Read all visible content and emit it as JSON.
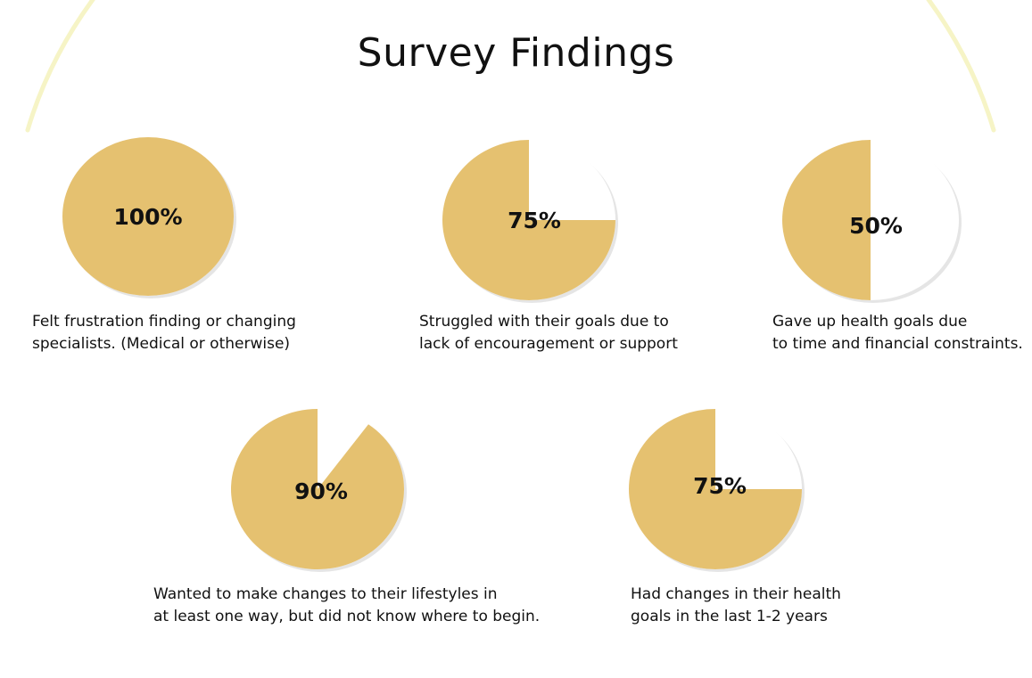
{
  "title": "Survey Findings",
  "colors": {
    "filled": "#e5c170",
    "empty": "#ffffff",
    "arc": "#f6f4c6"
  },
  "chart_data": [
    {
      "type": "pie",
      "value_percent": 100,
      "label": "100%",
      "caption": [
        "Felt frustration finding or changing",
        "specialists. (Medical or otherwise)"
      ]
    },
    {
      "type": "pie",
      "value_percent": 75,
      "label": "75%",
      "caption": [
        "Struggled with their goals due to",
        "lack of encouragement or support"
      ]
    },
    {
      "type": "pie",
      "value_percent": 50,
      "label": "50%",
      "caption": [
        "Gave up health goals due",
        "to time and financial constraints."
      ]
    },
    {
      "type": "pie",
      "value_percent": 90,
      "label": "90%",
      "caption": [
        "Wanted to make changes to their lifestyles in",
        "at least one way, but did not know where to begin."
      ]
    },
    {
      "type": "pie",
      "value_percent": 75,
      "label": "75%",
      "caption": [
        "Had changes in their health",
        "goals in the last 1-2 years"
      ]
    }
  ]
}
